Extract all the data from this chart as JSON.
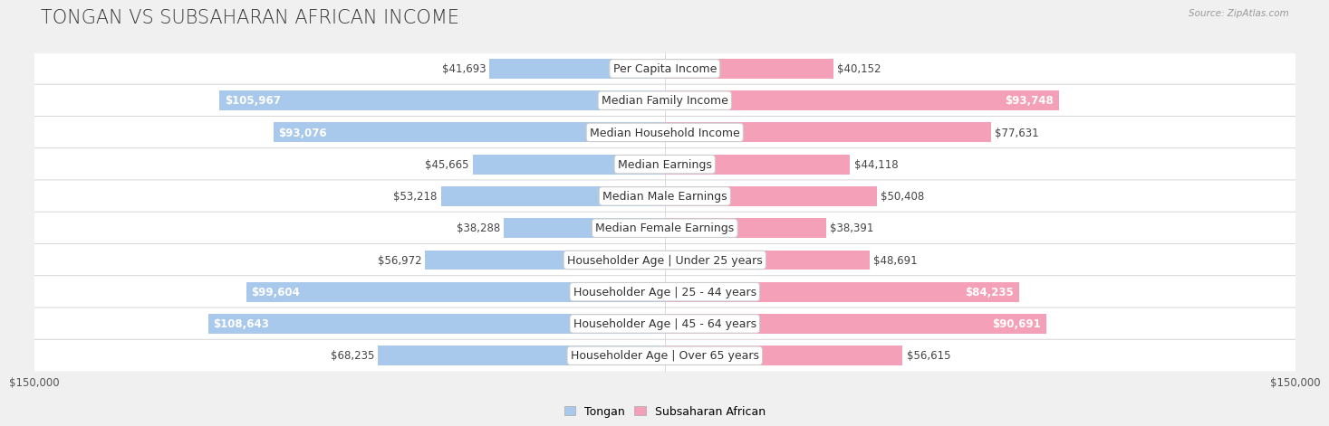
{
  "title": "TONGAN VS SUBSAHARAN AFRICAN INCOME",
  "source": "Source: ZipAtlas.com",
  "categories": [
    "Per Capita Income",
    "Median Family Income",
    "Median Household Income",
    "Median Earnings",
    "Median Male Earnings",
    "Median Female Earnings",
    "Householder Age | Under 25 years",
    "Householder Age | 25 - 44 years",
    "Householder Age | 45 - 64 years",
    "Householder Age | Over 65 years"
  ],
  "tongan_values": [
    41693,
    105967,
    93076,
    45665,
    53218,
    38288,
    56972,
    99604,
    108643,
    68235
  ],
  "subsaharan_values": [
    40152,
    93748,
    77631,
    44118,
    50408,
    38391,
    48691,
    84235,
    90691,
    56615
  ],
  "tongan_color": "#A8C8EC",
  "subsaharan_color": "#F4A0B8",
  "bg_color": "#f0f0f0",
  "row_bg_light": "#f8f8f8",
  "row_bg_white": "#ffffff",
  "max_value": 150000,
  "xlabel_left": "$150,000",
  "xlabel_right": "$150,000",
  "legend_tongan": "Tongan",
  "legend_subsaharan": "Subsaharan African",
  "title_fontsize": 15,
  "label_fontsize": 9,
  "value_fontsize": 8.5,
  "bar_height": 0.62,
  "tongan_inside_threshold": 0.58,
  "subsaharan_inside_threshold": 0.55
}
